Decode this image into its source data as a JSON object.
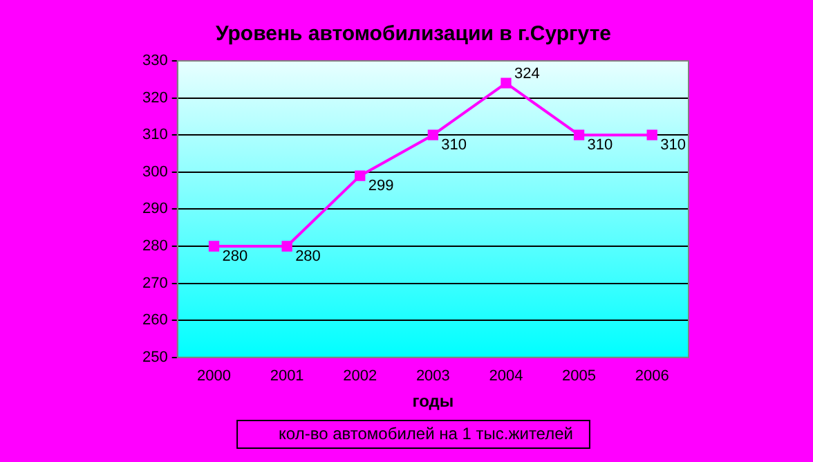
{
  "chart_data": {
    "type": "line",
    "title": "Уровень автомобилизации в г.Сургуте",
    "xlabel": "годы",
    "categories": [
      "2000",
      "2001",
      "2002",
      "2003",
      "2004",
      "2005",
      "2006"
    ],
    "series": [
      {
        "name": "кол-во автомобилей на 1 тыс.жителей",
        "color": "#ff00ff",
        "values": [
          280,
          280,
          299,
          310,
          324,
          310,
          310
        ]
      }
    ],
    "ylim": [
      250,
      330
    ],
    "yticks": [
      250,
      260,
      270,
      280,
      290,
      300,
      310,
      320,
      330
    ],
    "grid": "y",
    "legend": "bottom",
    "marker": "square",
    "line_style": "solid",
    "data_labels": true
  }
}
